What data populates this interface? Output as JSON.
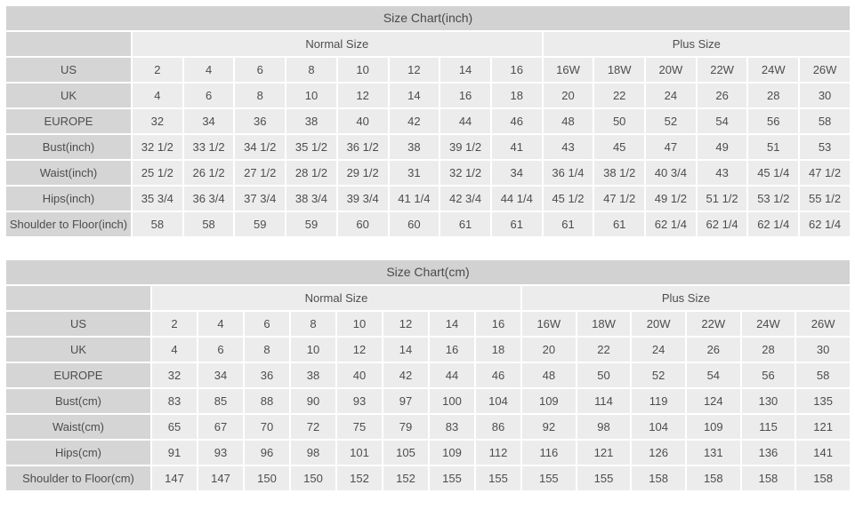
{
  "colors": {
    "title_bar_bg": "#d2d2d2",
    "label_cell_bg": "#d5d5d5",
    "value_cell_bg": "#ececec",
    "text": "#4d4d4d",
    "gap": "#ffffff"
  },
  "tables": [
    {
      "id": "inch",
      "title": "Size Chart(inch)",
      "group_headers": [
        "Normal Size",
        "Plus Size"
      ],
      "normal_size_columns": 8,
      "rows": [
        {
          "label": "US",
          "values": [
            "2",
            "4",
            "6",
            "8",
            "10",
            "12",
            "14",
            "16",
            "16W",
            "18W",
            "20W",
            "22W",
            "24W",
            "26W"
          ]
        },
        {
          "label": "UK",
          "values": [
            "4",
            "6",
            "8",
            "10",
            "12",
            "14",
            "16",
            "18",
            "20",
            "22",
            "24",
            "26",
            "28",
            "30"
          ]
        },
        {
          "label": "EUROPE",
          "values": [
            "32",
            "34",
            "36",
            "38",
            "40",
            "42",
            "44",
            "46",
            "48",
            "50",
            "52",
            "54",
            "56",
            "58"
          ]
        },
        {
          "label": "Bust(inch)",
          "values": [
            "32 1/2",
            "33 1/2",
            "34 1/2",
            "35 1/2",
            "36 1/2",
            "38",
            "39 1/2",
            "41",
            "43",
            "45",
            "47",
            "49",
            "51",
            "53"
          ]
        },
        {
          "label": "Waist(inch)",
          "values": [
            "25 1/2",
            "26 1/2",
            "27 1/2",
            "28 1/2",
            "29 1/2",
            "31",
            "32 1/2",
            "34",
            "36 1/4",
            "38 1/2",
            "40 3/4",
            "43",
            "45 1/4",
            "47 1/2"
          ]
        },
        {
          "label": "Hips(inch)",
          "values": [
            "35 3/4",
            "36 3/4",
            "37 3/4",
            "38 3/4",
            "39 3/4",
            "41 1/4",
            "42 3/4",
            "44 1/4",
            "45 1/2",
            "47 1/2",
            "49 1/2",
            "51 1/2",
            "53 1/2",
            "55 1/2"
          ]
        },
        {
          "label": "Shoulder to Floor(inch)",
          "values": [
            "58",
            "58",
            "59",
            "59",
            "60",
            "60",
            "61",
            "61",
            "61",
            "61",
            "62 1/4",
            "62 1/4",
            "62 1/4",
            "62 1/4"
          ]
        }
      ]
    },
    {
      "id": "cm",
      "title": "Size Chart(cm)",
      "group_headers": [
        "Normal Size",
        "Plus Size"
      ],
      "normal_size_columns": 8,
      "rows": [
        {
          "label": "US",
          "values": [
            "2",
            "4",
            "6",
            "8",
            "10",
            "12",
            "14",
            "16",
            "16W",
            "18W",
            "20W",
            "22W",
            "24W",
            "26W"
          ]
        },
        {
          "label": "UK",
          "values": [
            "4",
            "6",
            "8",
            "10",
            "12",
            "14",
            "16",
            "18",
            "20",
            "22",
            "24",
            "26",
            "28",
            "30"
          ]
        },
        {
          "label": "EUROPE",
          "values": [
            "32",
            "34",
            "36",
            "38",
            "40",
            "42",
            "44",
            "46",
            "48",
            "50",
            "52",
            "54",
            "56",
            "58"
          ]
        },
        {
          "label": "Bust(cm)",
          "values": [
            "83",
            "85",
            "88",
            "90",
            "93",
            "97",
            "100",
            "104",
            "109",
            "114",
            "119",
            "124",
            "130",
            "135"
          ]
        },
        {
          "label": "Waist(cm)",
          "values": [
            "65",
            "67",
            "70",
            "72",
            "75",
            "79",
            "83",
            "86",
            "92",
            "98",
            "104",
            "109",
            "115",
            "121"
          ]
        },
        {
          "label": "Hips(cm)",
          "values": [
            "91",
            "93",
            "96",
            "98",
            "101",
            "105",
            "109",
            "112",
            "116",
            "121",
            "126",
            "131",
            "136",
            "141"
          ]
        },
        {
          "label": "Shoulder to Floor(cm)",
          "values": [
            "147",
            "147",
            "150",
            "150",
            "152",
            "152",
            "155",
            "155",
            "155",
            "155",
            "158",
            "158",
            "158",
            "158"
          ]
        }
      ]
    }
  ]
}
